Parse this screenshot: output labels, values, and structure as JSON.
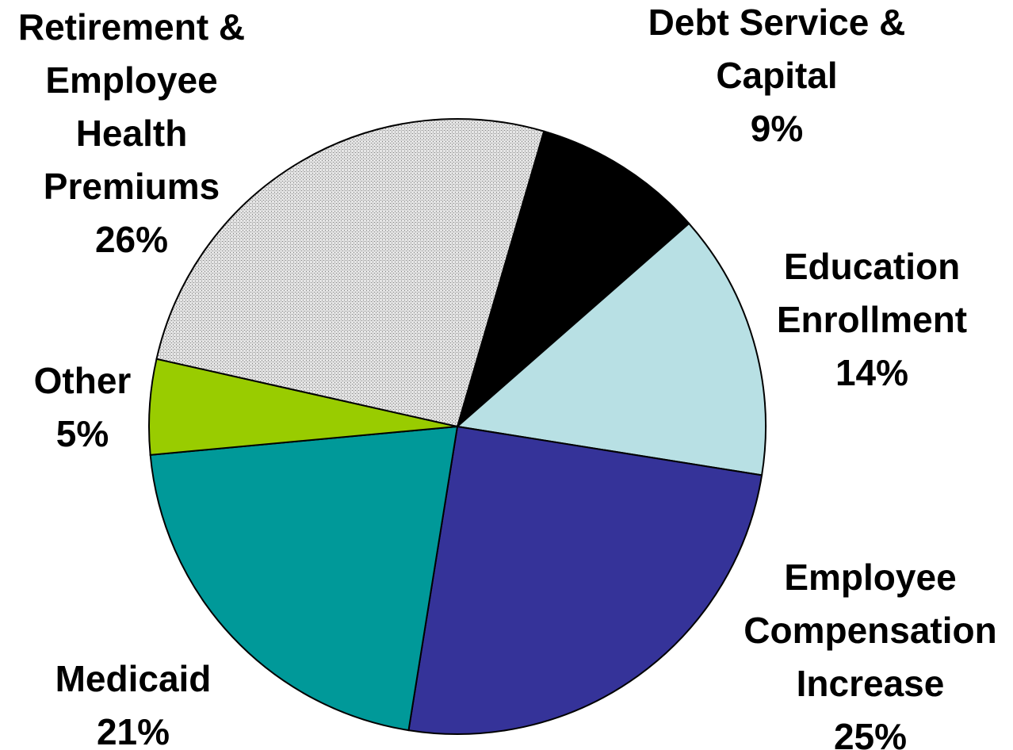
{
  "chart_data": {
    "type": "pie",
    "title": "",
    "start_angle_deg": -73.7,
    "direction": "clockwise",
    "slices": [
      {
        "label_lines": [
          "Debt Service &",
          "Capital"
        ],
        "value_label": "9%",
        "value": 9,
        "color": "#000000",
        "pattern": "solid"
      },
      {
        "label_lines": [
          "Education",
          "Enrollment"
        ],
        "value_label": "14%",
        "value": 14,
        "color": "#b8e0e4",
        "pattern": "solid"
      },
      {
        "label_lines": [
          "Employee",
          "Compensation",
          "Increase"
        ],
        "value_label": "25%",
        "value": 25,
        "color": "#353399",
        "pattern": "solid"
      },
      {
        "label_lines": [
          "Medicaid"
        ],
        "value_label": "21%",
        "value": 21,
        "color": "#009999",
        "pattern": "solid"
      },
      {
        "label_lines": [
          "Other"
        ],
        "value_label": "5%",
        "value": 5,
        "color": "#99cc00",
        "pattern": "solid"
      },
      {
        "label_lines": [
          "Retirement &",
          "Employee",
          "Health",
          "Premiums"
        ],
        "value_label": "26%",
        "value": 26,
        "color": "#c8c8c8",
        "pattern": "dotted-gray"
      }
    ]
  }
}
